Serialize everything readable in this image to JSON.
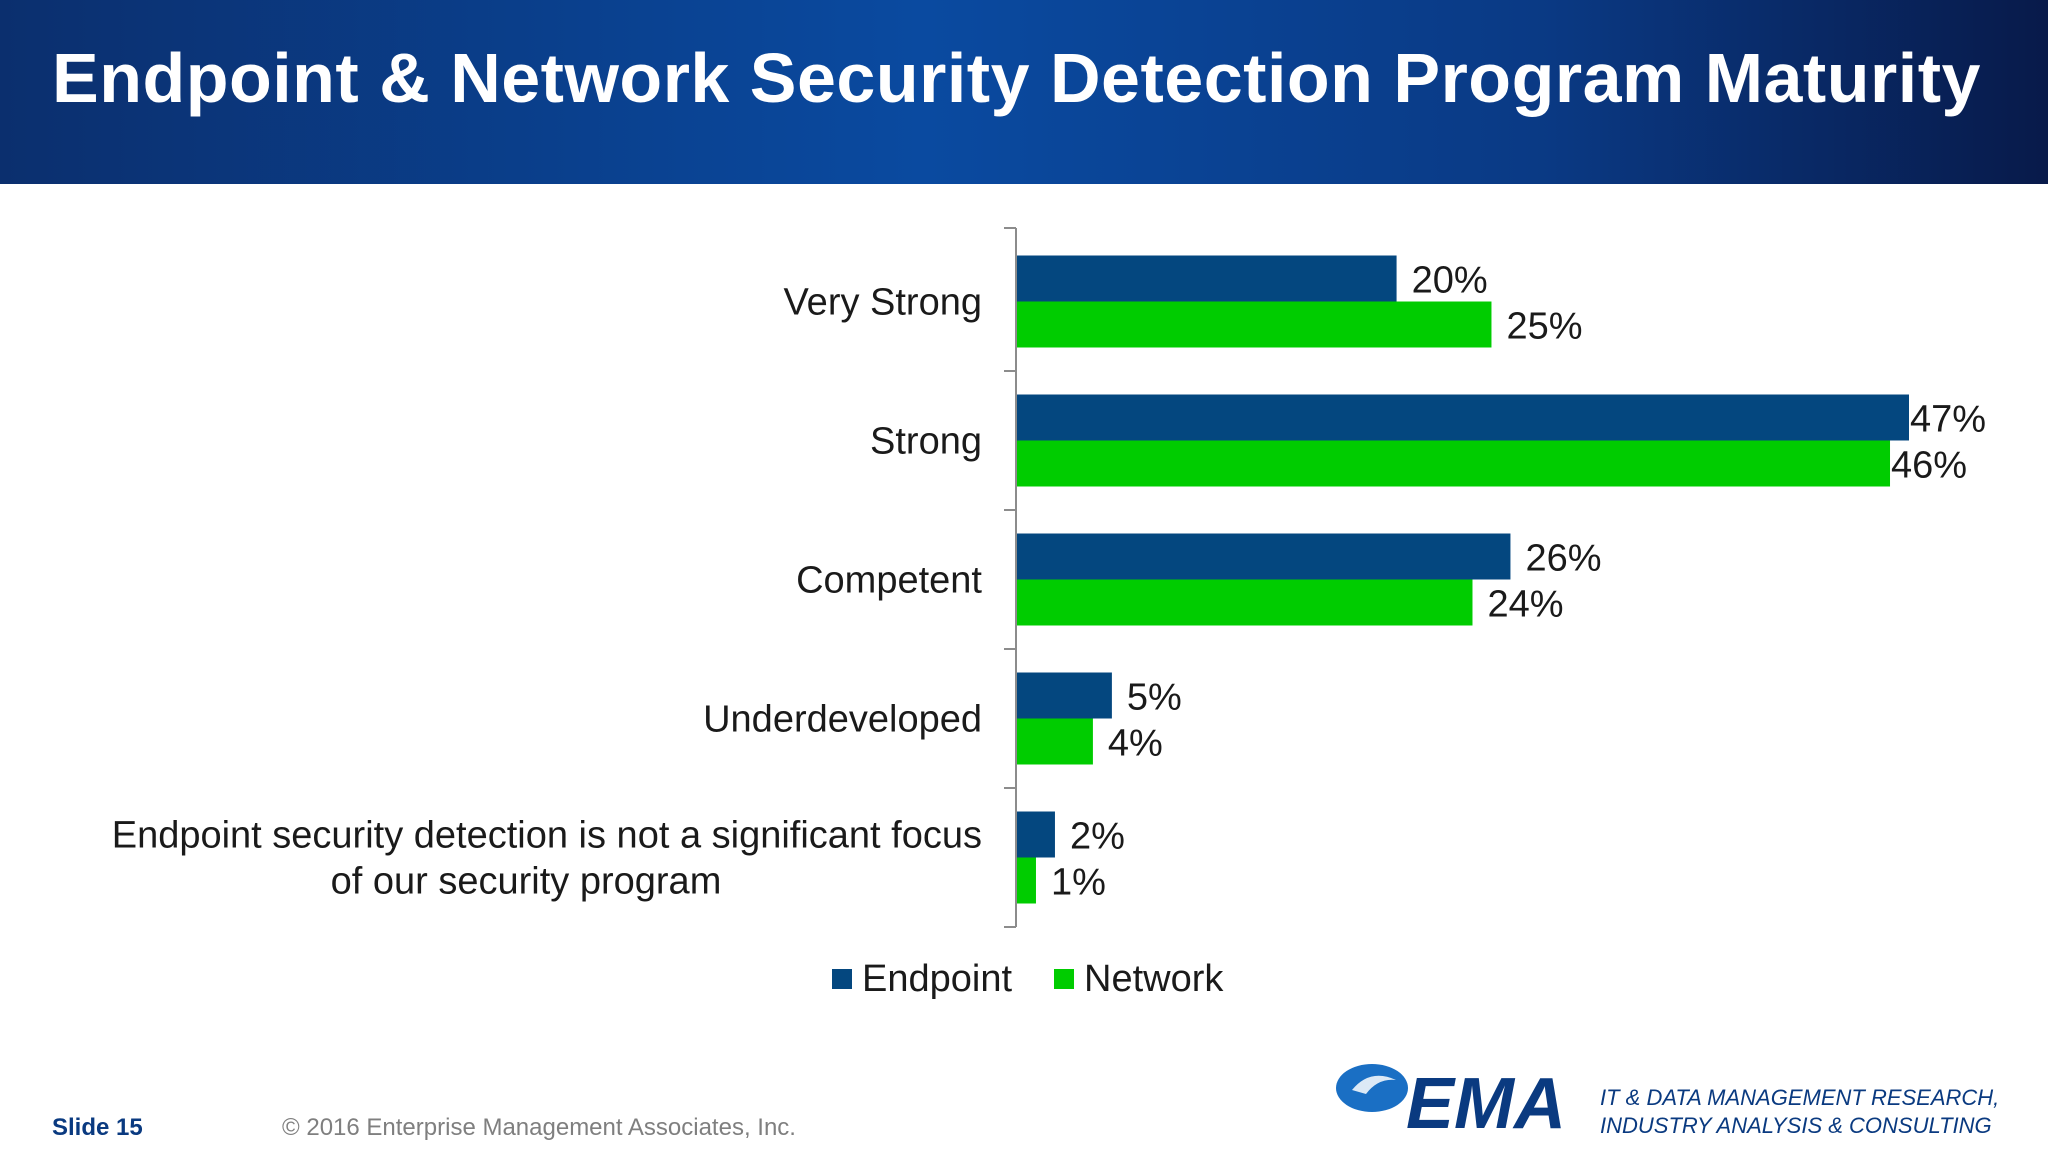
{
  "slide": {
    "title": "Endpoint & Network Security Detection Program Maturity",
    "slide_label": "Slide 15",
    "copyright": "© 2016 Enterprise Management Associates, Inc.",
    "logo_text": "EMA",
    "tagline_line1": "IT & DATA MANAGEMENT RESEARCH,",
    "tagline_line2": "INDUSTRY ANALYSIS & CONSULTING"
  },
  "colors": {
    "endpoint": "#04477f",
    "network": "#00cc00"
  },
  "chart_data": {
    "type": "bar",
    "orientation": "horizontal",
    "title": "",
    "xlabel": "",
    "ylabel": "",
    "xlim": [
      0,
      47
    ],
    "grid": false,
    "legend": "bottom",
    "categories": [
      [
        "Very Strong"
      ],
      [
        "Strong"
      ],
      [
        "Competent"
      ],
      [
        "Underdeveloped"
      ],
      [
        "Endpoint security detection is not a significant focus",
        "of our security program"
      ]
    ],
    "series": [
      {
        "name": "Endpoint",
        "values": [
          20,
          47,
          26,
          5,
          2
        ],
        "labels": [
          "20%",
          "47%",
          "26%",
          "5%",
          "2%"
        ]
      },
      {
        "name": "Network",
        "values": [
          25,
          46,
          24,
          4,
          1
        ],
        "labels": [
          "25%",
          "46%",
          "24%",
          "4%",
          "1%"
        ]
      }
    ]
  }
}
